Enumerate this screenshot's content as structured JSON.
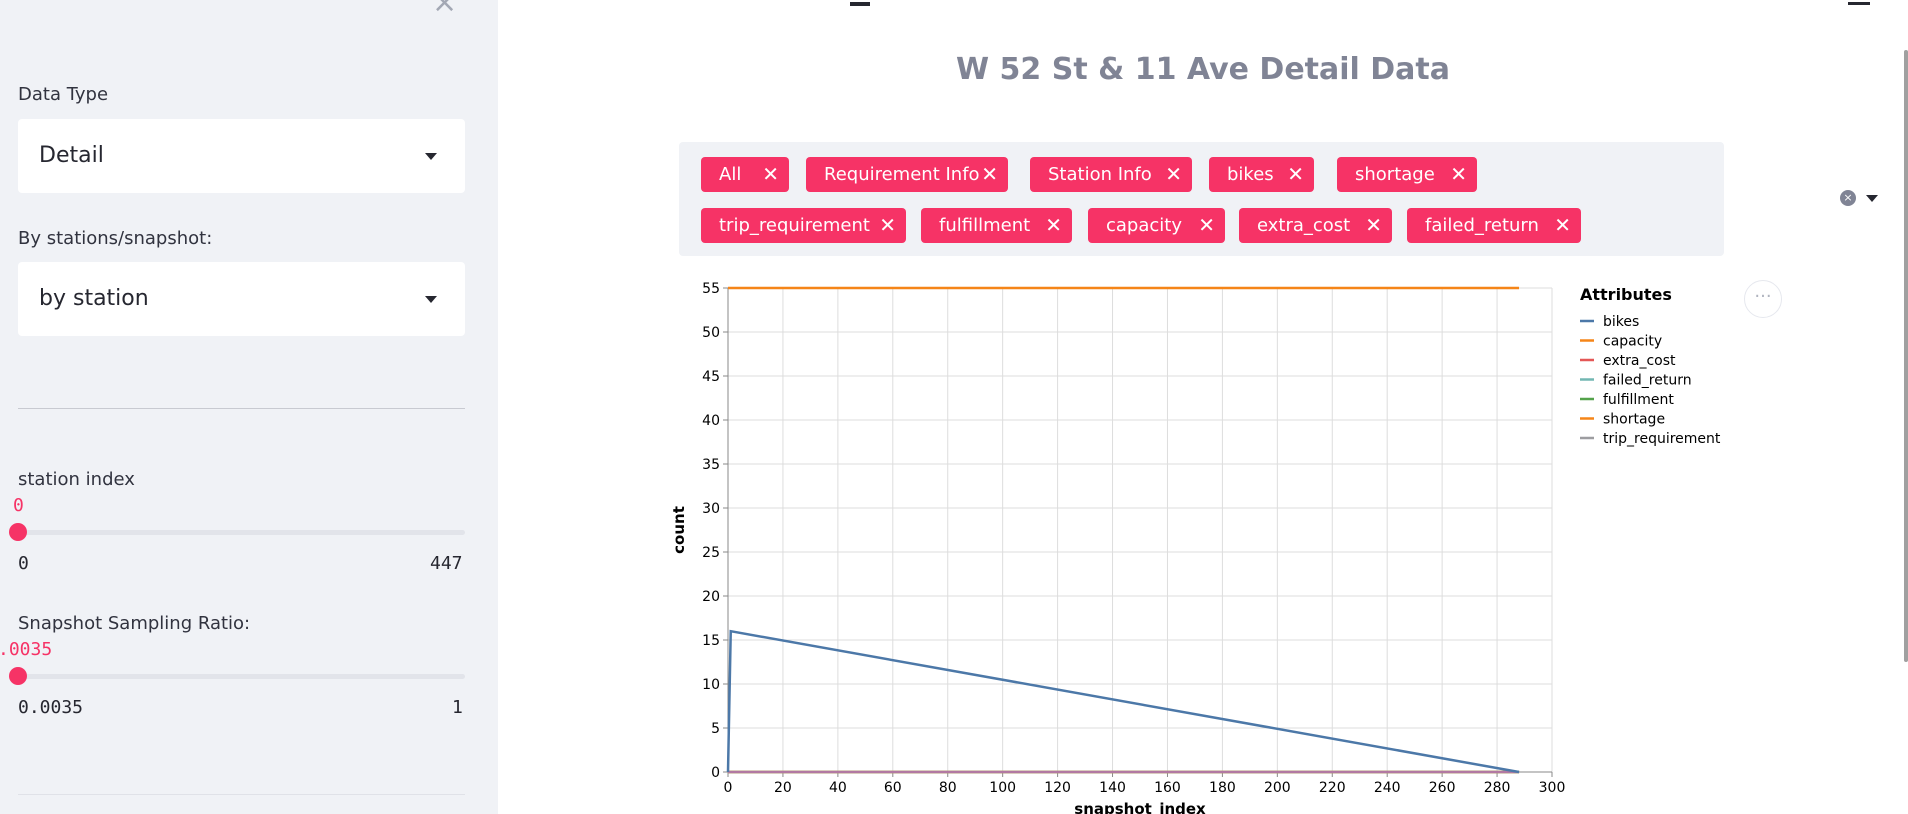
{
  "sidebar": {
    "data_type_label": "Data Type",
    "data_type_value": "Detail",
    "by_label": "By stations/snapshot:",
    "by_value": "by station",
    "station_index": {
      "label": "station index",
      "value": "0",
      "min": "0",
      "max": "447",
      "fraction": 0
    },
    "sampling": {
      "label": "Snapshot Sampling Ratio:",
      "value": ".0035",
      "min": "0.0035",
      "max": "1",
      "fraction": 0
    }
  },
  "main": {
    "title": "W 52 St & 11 Ave Detail Data",
    "tags": [
      "All",
      "Requirement Info",
      "Station Info",
      "bikes",
      "shortage",
      "trip_requirement",
      "fulfillment",
      "capacity",
      "extra_cost",
      "failed_return"
    ],
    "tag_close_glyph": "✕",
    "more_glyph": "···"
  },
  "colors": {
    "accent": "#f63366",
    "sidebar_bg": "#f0f2f6"
  },
  "chart_data": {
    "type": "line",
    "xlabel": "snapshot_index",
    "ylabel": "count",
    "xlim": [
      0,
      300
    ],
    "ylim": [
      0,
      55
    ],
    "xticks": [
      0,
      20,
      40,
      60,
      80,
      100,
      120,
      140,
      160,
      180,
      200,
      220,
      240,
      260,
      280,
      300
    ],
    "yticks": [
      0,
      5,
      10,
      15,
      20,
      25,
      30,
      35,
      40,
      45,
      50,
      55
    ],
    "grid": true,
    "legend": {
      "title": "Attributes",
      "placement": "right"
    },
    "series": [
      {
        "name": "bikes",
        "color": "#4c78a8",
        "points": [
          [
            0,
            0
          ],
          [
            1,
            16
          ],
          [
            288,
            0
          ]
        ]
      },
      {
        "name": "capacity",
        "color": "#f58518",
        "points": [
          [
            0,
            55
          ],
          [
            288,
            55
          ]
        ]
      },
      {
        "name": "extra_cost",
        "color": "#e45756",
        "points": [
          [
            0,
            0
          ],
          [
            288,
            0
          ]
        ]
      },
      {
        "name": "failed_return",
        "color": "#72b7b2",
        "points": [
          [
            0,
            0
          ],
          [
            288,
            0
          ]
        ]
      },
      {
        "name": "fulfillment",
        "color": "#54a24b",
        "points": [
          [
            0,
            0
          ],
          [
            288,
            0
          ]
        ]
      },
      {
        "name": "shortage",
        "color": "#eeca3b",
        "points": [
          [
            0,
            0
          ],
          [
            288,
            0
          ]
        ]
      },
      {
        "name": "trip_requirement",
        "color": "#b279a2",
        "points": [
          [
            0,
            0
          ],
          [
            288,
            0
          ]
        ]
      }
    ],
    "legend_colors": [
      "#4c78a8",
      "#f58518",
      "#e45756",
      "#72b7b2",
      "#54a24b",
      "#f58518",
      "#9d9da0"
    ]
  }
}
